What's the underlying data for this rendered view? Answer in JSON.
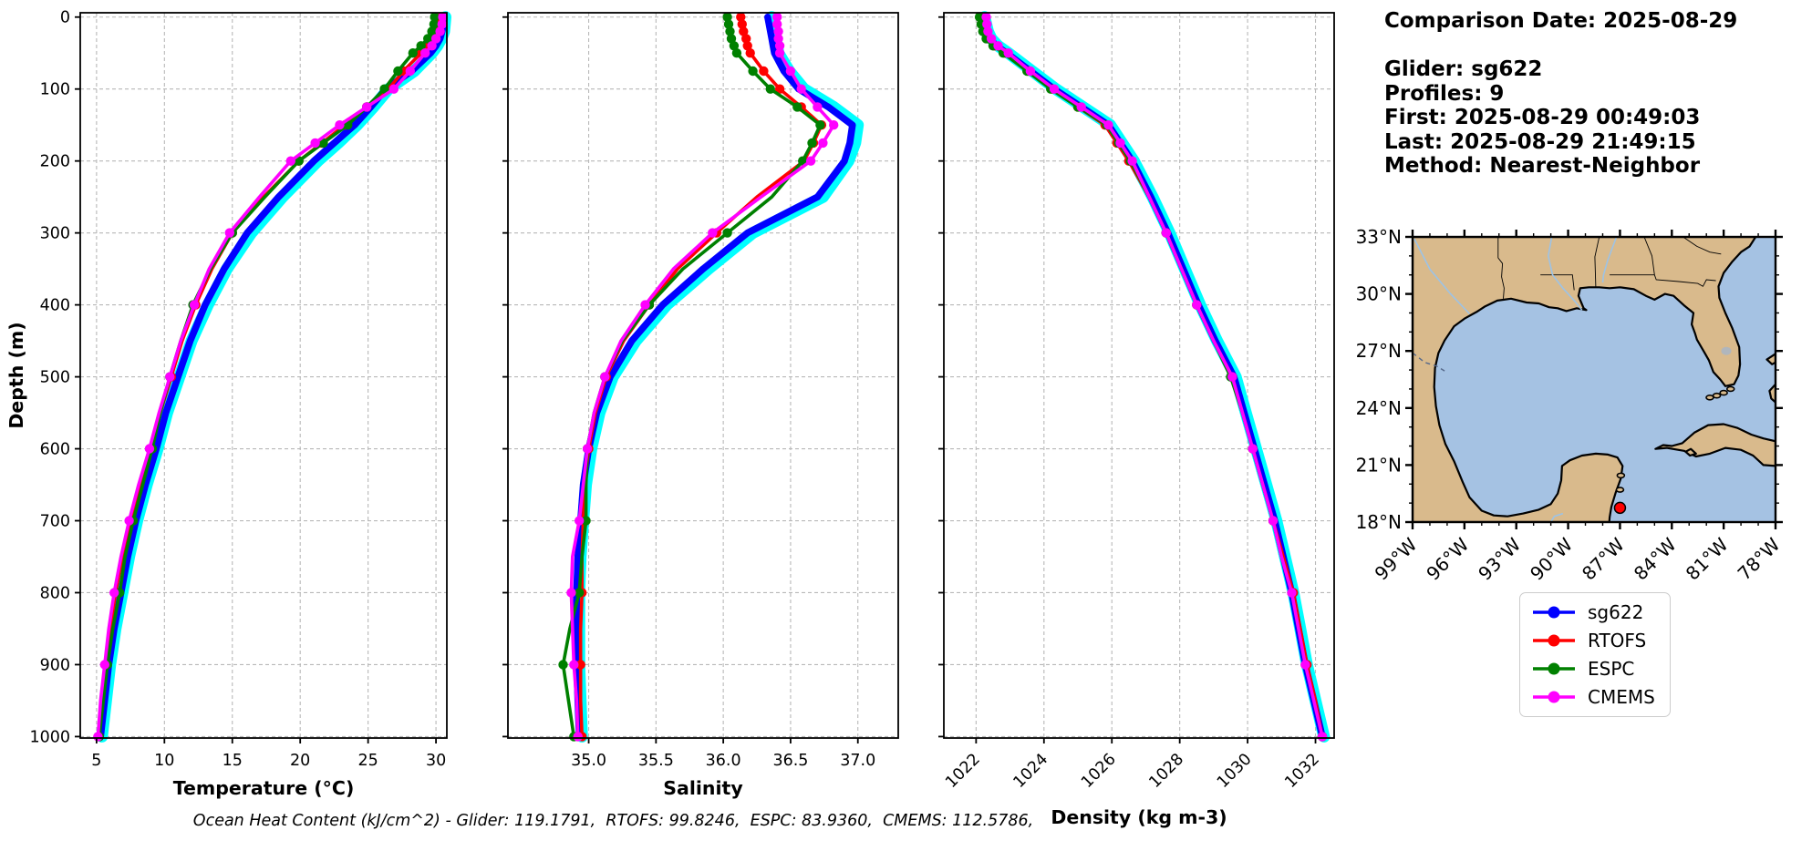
{
  "info_panel": {
    "lines": [
      "Comparison Date: 2025-08-29",
      "",
      "Glider: sg622",
      "Profiles: 9",
      "First: 2025-08-29 00:49:03",
      "Last: 2025-08-29 21:49:15",
      "Method: Nearest-Neighbor"
    ]
  },
  "footer_note": "Ocean Heat Content (kJ/cm^2) - Glider: 119.1791,  RTOFS: 99.8246,  ESPC: 83.9360,  CMEMS: 112.5786,",
  "legend": {
    "entries": [
      {
        "label": "sg622",
        "color": "#0000ff"
      },
      {
        "label": "RTOFS",
        "color": "#ff0000"
      },
      {
        "label": "ESPC",
        "color": "#008000"
      },
      {
        "label": "CMEMS",
        "color": "#ff00ff"
      }
    ]
  },
  "colors": {
    "glider_envelope": "#00ffff",
    "sg622": "#0000ff",
    "rtofs": "#ff0000",
    "espc": "#008000",
    "cmems": "#ff00ff",
    "grid": "#b8b8b8",
    "land": "#d9ba8c",
    "ocean": "#a5c2e3",
    "river": "#9dc3e6",
    "lake": "#b0b6bc",
    "glider_marker": "#ff0000"
  },
  "map": {
    "extent": {
      "lon_west": 99,
      "lon_east": 78,
      "lat_south": 18,
      "lat_north": 33
    },
    "lat_tick_values": [
      33,
      30,
      27,
      24,
      21,
      18
    ],
    "lat_tick_labels": [
      "33°N",
      "30°N",
      "27°N",
      "24°N",
      "21°N",
      "18°N"
    ],
    "lon_tick_values": [
      99,
      96,
      93,
      90,
      87,
      84,
      81,
      78
    ],
    "lon_tick_labels": [
      "99°W",
      "96°W",
      "93°W",
      "90°W",
      "87°W",
      "84°W",
      "81°W",
      "78°W"
    ],
    "marker": {
      "lon": 87.0,
      "lat": 18.75,
      "color": "#ff0000"
    }
  },
  "chart_data": [
    {
      "id": "temperature",
      "type": "line",
      "title": "",
      "xlabel": "Temperature (°C)",
      "ylabel": "Depth (m)",
      "xlim": [
        3.8,
        30.8
      ],
      "ylim": [
        -6,
        1002
      ],
      "grid": true,
      "legend_position": "outside-right",
      "xticks": [
        5,
        10,
        15,
        20,
        25,
        30
      ],
      "xtick_labels": [
        "5",
        "10",
        "15",
        "20",
        "25",
        "30"
      ],
      "xtick_rotation": 0,
      "yticks": [
        0,
        100,
        200,
        300,
        400,
        500,
        600,
        700,
        800,
        900,
        1000
      ],
      "ytick_labels": [
        "0",
        "100",
        "200",
        "300",
        "400",
        "500",
        "600",
        "700",
        "800",
        "900",
        "1000"
      ],
      "depths": [
        0,
        10,
        20,
        30,
        40,
        50,
        75,
        100,
        125,
        150,
        175,
        200,
        250,
        300,
        350,
        400,
        450,
        500,
        550,
        600,
        650,
        700,
        750,
        800,
        850,
        900,
        950,
        1000
      ],
      "series": [
        {
          "name": "glider-profiles",
          "color": "#00ffff",
          "line_width": 13,
          "markers": false,
          "values": [
            30.7,
            30.65,
            30.6,
            30.4,
            30.1,
            29.7,
            28.4,
            26.5,
            25.4,
            24.2,
            22.8,
            21.3,
            18.7,
            16.4,
            14.6,
            13.2,
            12.0,
            11.1,
            10.2,
            9.5,
            8.7,
            8.0,
            7.4,
            6.9,
            6.4,
            6.0,
            5.7,
            5.4
          ]
        },
        {
          "name": "sg622",
          "color": "#0000ff",
          "line_width": 7.5,
          "markers": false,
          "values": [
            30.6,
            30.55,
            30.45,
            30.3,
            30.0,
            29.6,
            28.2,
            26.3,
            25.2,
            24.0,
            22.5,
            21.0,
            18.4,
            16.1,
            14.4,
            13.0,
            11.9,
            11.0,
            10.1,
            9.4,
            8.6,
            7.9,
            7.3,
            6.8,
            6.3,
            5.9,
            5.6,
            5.3
          ]
        },
        {
          "name": "RTOFS",
          "color": "#ff0000",
          "line_width": 3.6,
          "markers": true,
          "values": [
            30.4,
            30.3,
            30.1,
            29.8,
            29.4,
            28.9,
            27.6,
            26.5,
            24.9,
            23.3,
            21.6,
            19.9,
            17.3,
            15.0,
            13.5,
            12.3,
            11.3,
            10.5,
            9.7,
            9.0,
            8.2,
            7.5,
            6.9,
            6.4,
            6.0,
            5.7,
            5.4,
            5.2
          ]
        },
        {
          "name": "ESPC",
          "color": "#008000",
          "line_width": 3.6,
          "markers": true,
          "values": [
            29.9,
            29.85,
            29.7,
            29.4,
            28.9,
            28.3,
            27.2,
            26.2,
            24.9,
            23.5,
            21.7,
            19.9,
            17.4,
            15.0,
            13.4,
            12.1,
            11.2,
            10.4,
            9.7,
            9.1,
            8.4,
            7.7,
            7.1,
            6.7,
            6.2,
            5.8,
            5.5,
            5.2
          ]
        },
        {
          "name": "CMEMS",
          "color": "#ff00ff",
          "line_width": 3.6,
          "markers": true,
          "values": [
            30.5,
            30.45,
            30.3,
            30.0,
            29.7,
            29.2,
            28.1,
            26.9,
            24.9,
            22.9,
            21.1,
            19.3,
            17.0,
            14.8,
            13.3,
            12.2,
            11.2,
            10.4,
            9.6,
            8.9,
            8.1,
            7.4,
            6.8,
            6.3,
            5.9,
            5.6,
            5.3,
            5.1
          ]
        }
      ]
    },
    {
      "id": "salinity",
      "type": "line",
      "title": "",
      "xlabel": "Salinity",
      "ylabel": "",
      "xlim": [
        34.4,
        37.3
      ],
      "ylim": [
        -6,
        1002
      ],
      "grid": true,
      "xticks": [
        35.0,
        35.5,
        36.0,
        36.5,
        37.0
      ],
      "xtick_labels": [
        "35.0",
        "35.5",
        "36.0",
        "36.5",
        "37.0"
      ],
      "xtick_rotation": 0,
      "yticks": [
        0,
        100,
        200,
        300,
        400,
        500,
        600,
        700,
        800,
        900,
        1000
      ],
      "ytick_labels": [
        "0",
        "100",
        "200",
        "300",
        "400",
        "500",
        "600",
        "700",
        "800",
        "900",
        "1000"
      ],
      "depths": [
        0,
        10,
        20,
        30,
        40,
        50,
        75,
        100,
        125,
        150,
        175,
        200,
        250,
        300,
        350,
        400,
        450,
        500,
        550,
        600,
        650,
        700,
        750,
        800,
        850,
        900,
        950,
        1000
      ],
      "series": [
        {
          "name": "glider-profiles",
          "color": "#00ffff",
          "line_width": 13,
          "markers": false,
          "values": [
            36.36,
            36.37,
            36.38,
            36.39,
            36.4,
            36.41,
            36.49,
            36.6,
            36.82,
            37.0,
            36.98,
            36.93,
            36.74,
            36.22,
            35.89,
            35.58,
            35.35,
            35.18,
            35.08,
            35.02,
            34.98,
            34.96,
            34.94,
            34.93,
            34.93,
            34.93,
            34.94,
            34.95
          ]
        },
        {
          "name": "sg622",
          "color": "#0000ff",
          "line_width": 7.5,
          "markers": false,
          "values": [
            36.33,
            36.34,
            36.35,
            36.36,
            36.37,
            36.38,
            36.45,
            36.56,
            36.78,
            36.96,
            36.94,
            36.9,
            36.7,
            36.18,
            35.85,
            35.55,
            35.32,
            35.16,
            35.06,
            35.0,
            34.96,
            34.94,
            34.92,
            34.91,
            34.91,
            34.91,
            34.92,
            34.93
          ]
        },
        {
          "name": "RTOFS",
          "color": "#ff0000",
          "line_width": 3.6,
          "markers": true,
          "values": [
            36.13,
            36.14,
            36.15,
            36.17,
            36.18,
            36.2,
            36.3,
            36.42,
            36.58,
            36.73,
            36.67,
            36.6,
            36.25,
            35.95,
            35.66,
            35.45,
            35.26,
            35.13,
            35.05,
            35.0,
            34.97,
            34.96,
            34.95,
            34.95,
            34.94,
            34.94,
            34.94,
            34.95
          ]
        },
        {
          "name": "ESPC",
          "color": "#008000",
          "line_width": 3.6,
          "markers": true,
          "values": [
            36.03,
            36.04,
            36.05,
            36.06,
            36.08,
            36.1,
            36.22,
            36.35,
            36.55,
            36.72,
            36.66,
            36.59,
            36.36,
            36.03,
            35.7,
            35.45,
            35.25,
            35.12,
            35.04,
            34.99,
            34.98,
            34.98,
            34.95,
            34.93,
            34.86,
            34.81,
            34.85,
            34.89
          ]
        },
        {
          "name": "CMEMS",
          "color": "#ff00ff",
          "line_width": 3.6,
          "markers": true,
          "values": [
            36.4,
            36.4,
            36.41,
            36.41,
            36.42,
            36.42,
            36.5,
            36.58,
            36.7,
            36.82,
            36.74,
            36.65,
            36.28,
            35.92,
            35.63,
            35.42,
            35.24,
            35.12,
            35.04,
            34.99,
            34.96,
            34.93,
            34.88,
            34.87,
            34.88,
            34.89,
            34.91,
            34.92
          ]
        }
      ]
    },
    {
      "id": "density",
      "type": "line",
      "title": "",
      "xlabel": "Density (kg m-3)",
      "ylabel": "",
      "xlim": [
        1021.05,
        1032.55
      ],
      "ylim": [
        -6,
        1002
      ],
      "grid": true,
      "xticks": [
        1022,
        1024,
        1026,
        1028,
        1030,
        1032
      ],
      "xtick_labels": [
        "1022",
        "1024",
        "1026",
        "1028",
        "1030",
        "1032"
      ],
      "xtick_rotation": 45,
      "yticks": [
        0,
        100,
        200,
        300,
        400,
        500,
        600,
        700,
        800,
        900,
        1000
      ],
      "ytick_labels": [
        "0",
        "100",
        "200",
        "300",
        "400",
        "500",
        "600",
        "700",
        "800",
        "900",
        "1000"
      ],
      "depths": [
        0,
        10,
        20,
        30,
        40,
        50,
        75,
        100,
        125,
        150,
        175,
        200,
        250,
        300,
        350,
        400,
        450,
        500,
        550,
        600,
        650,
        700,
        750,
        800,
        850,
        900,
        950,
        1000
      ],
      "series": [
        {
          "name": "glider-profiles",
          "color": "#00ffff",
          "line_width": 13,
          "markers": false,
          "values": [
            1022.25,
            1022.3,
            1022.35,
            1022.45,
            1022.65,
            1022.95,
            1023.65,
            1024.35,
            1025.15,
            1025.95,
            1026.3,
            1026.65,
            1027.2,
            1027.7,
            1028.15,
            1028.6,
            1029.1,
            1029.65,
            1029.95,
            1030.25,
            1030.55,
            1030.85,
            1031.1,
            1031.35,
            1031.55,
            1031.75,
            1032.0,
            1032.25
          ]
        },
        {
          "name": "sg622",
          "color": "#0000ff",
          "line_width": 7.5,
          "markers": false,
          "values": [
            1022.2,
            1022.25,
            1022.3,
            1022.4,
            1022.6,
            1022.9,
            1023.6,
            1024.3,
            1025.1,
            1025.9,
            1026.25,
            1026.6,
            1027.15,
            1027.65,
            1028.1,
            1028.55,
            1029.05,
            1029.6,
            1029.9,
            1030.2,
            1030.5,
            1030.8,
            1031.05,
            1031.3,
            1031.5,
            1031.7,
            1031.95,
            1032.2
          ]
        },
        {
          "name": "RTOFS",
          "color": "#ff0000",
          "line_width": 3.6,
          "markers": true,
          "values": [
            1022.15,
            1022.2,
            1022.25,
            1022.35,
            1022.55,
            1022.85,
            1023.55,
            1024.25,
            1025.0,
            1025.8,
            1026.15,
            1026.5,
            1027.1,
            1027.6,
            1028.05,
            1028.5,
            1029.0,
            1029.55,
            1029.85,
            1030.15,
            1030.45,
            1030.75,
            1031.05,
            1031.35,
            1031.55,
            1031.75,
            1032.0,
            1032.2
          ]
        },
        {
          "name": "ESPC",
          "color": "#008000",
          "line_width": 3.6,
          "markers": true,
          "values": [
            1022.1,
            1022.15,
            1022.2,
            1022.3,
            1022.5,
            1022.8,
            1023.5,
            1024.2,
            1025.0,
            1025.85,
            1026.2,
            1026.55,
            1027.1,
            1027.6,
            1028.05,
            1028.5,
            1029.0,
            1029.5,
            1029.85,
            1030.15,
            1030.45,
            1030.75,
            1031.0,
            1031.3,
            1031.5,
            1031.7,
            1031.95,
            1032.2
          ]
        },
        {
          "name": "CMEMS",
          "color": "#ff00ff",
          "line_width": 3.6,
          "markers": true,
          "values": [
            1022.3,
            1022.32,
            1022.35,
            1022.45,
            1022.65,
            1022.95,
            1023.6,
            1024.3,
            1025.1,
            1025.9,
            1026.25,
            1026.6,
            1027.1,
            1027.6,
            1028.05,
            1028.5,
            1029.0,
            1029.55,
            1029.85,
            1030.15,
            1030.45,
            1030.75,
            1031.0,
            1031.3,
            1031.5,
            1031.7,
            1031.95,
            1032.2
          ]
        }
      ]
    }
  ]
}
